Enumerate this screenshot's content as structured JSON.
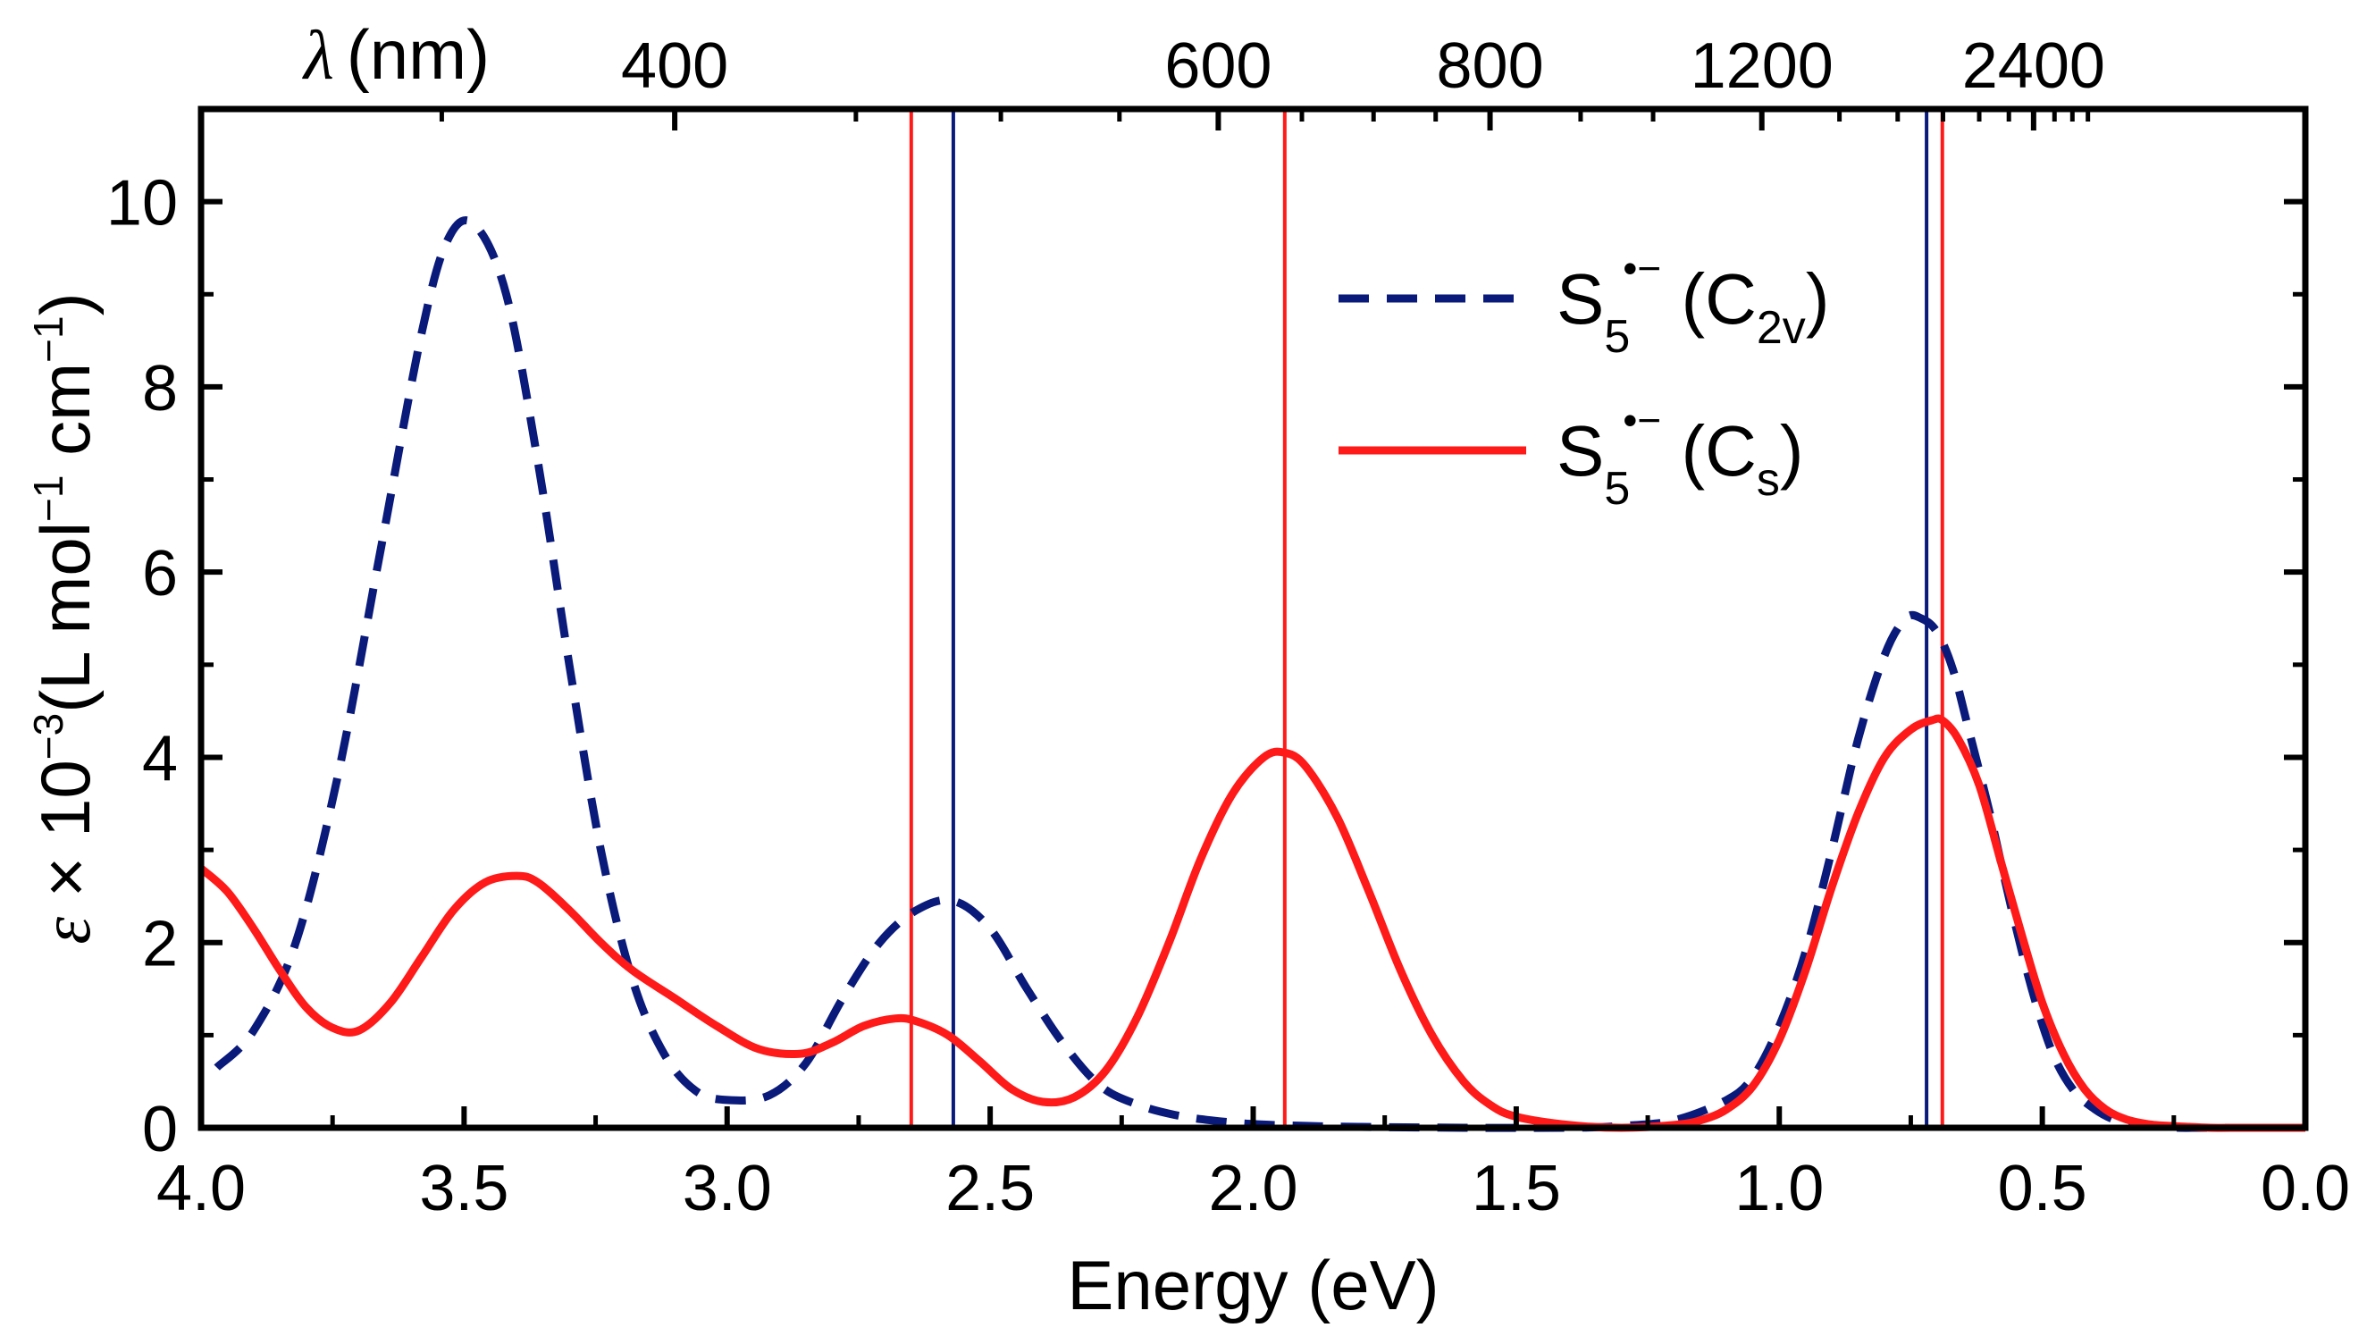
{
  "chart_data": {
    "type": "line",
    "xlabel": "Energy (eV)",
    "x_range": [
      4.0,
      0.0
    ],
    "x_ticks": [
      "4.0",
      "3.5",
      "3.0",
      "2.5",
      "2.0",
      "1.5",
      "1.0",
      "0.5",
      "0.0"
    ],
    "ylabel": "ε × 10⁻³ (L mol⁻¹ cm⁻¹)",
    "ylabel_parts": {
      "symbol": "ε",
      "times": " × 10",
      "exp": "−3",
      "unit_a": "(L mol",
      "exp_a": "−1",
      "unit_b": " cm",
      "exp_b": "−1",
      "close": ")"
    },
    "y_range": [
      0,
      11
    ],
    "y_ticks": [
      "0",
      "2",
      "4",
      "6",
      "8",
      "10"
    ],
    "top_axis": {
      "label_symbol": "λ",
      "label_unit": "(nm)",
      "ticks_nm": [
        400,
        600,
        800,
        1200,
        2400
      ],
      "tick_labels": [
        "400",
        "600",
        "800",
        "1200",
        "2400"
      ],
      "minor_ticks_nm": [
        300,
        350,
        450,
        500,
        550,
        650,
        700,
        750,
        900,
        1000,
        1400,
        1600,
        1800,
        2000,
        2200,
        2600,
        2800,
        3000
      ]
    },
    "series": [
      {
        "name": "S5•− (C2v)",
        "style": "dashed",
        "color": "#0a1a7a",
        "x": [
          3.97,
          3.9,
          3.82,
          3.74,
          3.66,
          3.58,
          3.53,
          3.48,
          3.42,
          3.36,
          3.3,
          3.24,
          3.18,
          3.12,
          3.06,
          3.0,
          2.92,
          2.85,
          2.78,
          2.71,
          2.64,
          2.57,
          2.5,
          2.43,
          2.36,
          2.29,
          2.22,
          2.15,
          2.08,
          2.0,
          1.9,
          1.8,
          1.6,
          1.4,
          1.3,
          1.2,
          1.1,
          1.05,
          1.0,
          0.95,
          0.9,
          0.85,
          0.8,
          0.76,
          0.73,
          0.7,
          0.67,
          0.64,
          0.6,
          0.56,
          0.52,
          0.48,
          0.44,
          0.4,
          0.36,
          0.32,
          0.28,
          0.24,
          0.2,
          0.15,
          0.1,
          0.05,
          0.0
        ],
        "y": [
          0.65,
          1.05,
          2.0,
          3.8,
          6.2,
          8.6,
          9.6,
          9.75,
          9.0,
          7.2,
          5.0,
          3.0,
          1.6,
          0.8,
          0.4,
          0.3,
          0.35,
          0.7,
          1.4,
          2.0,
          2.35,
          2.45,
          2.15,
          1.5,
          0.9,
          0.45,
          0.25,
          0.14,
          0.08,
          0.04,
          0.02,
          0.01,
          0.0,
          0.0,
          0.02,
          0.08,
          0.3,
          0.55,
          1.1,
          1.9,
          3.0,
          4.2,
          5.1,
          5.5,
          5.5,
          5.35,
          4.95,
          4.3,
          3.4,
          2.4,
          1.5,
          0.8,
          0.4,
          0.2,
          0.08,
          0.03,
          0.01,
          0.0,
          0.0,
          0.0,
          0.0,
          0.0,
          0.0
        ]
      },
      {
        "name": "S5•− (Cs)",
        "style": "solid",
        "color": "#ff1a1a",
        "x": [
          4.0,
          3.95,
          3.9,
          3.85,
          3.8,
          3.75,
          3.7,
          3.64,
          3.58,
          3.52,
          3.46,
          3.4,
          3.36,
          3.3,
          3.24,
          3.18,
          3.1,
          3.02,
          2.94,
          2.86,
          2.8,
          2.74,
          2.68,
          2.64,
          2.58,
          2.52,
          2.46,
          2.4,
          2.34,
          2.28,
          2.22,
          2.16,
          2.1,
          2.04,
          1.98,
          1.94,
          1.9,
          1.84,
          1.78,
          1.72,
          1.66,
          1.6,
          1.55,
          1.5,
          1.4,
          1.3,
          1.2,
          1.15,
          1.1,
          1.05,
          1.0,
          0.95,
          0.9,
          0.85,
          0.8,
          0.75,
          0.71,
          0.69,
          0.66,
          0.62,
          0.58,
          0.54,
          0.5,
          0.46,
          0.42,
          0.38,
          0.34,
          0.3,
          0.26,
          0.22,
          0.18,
          0.12,
          0.06,
          0.0
        ],
        "y": [
          2.8,
          2.55,
          2.15,
          1.7,
          1.3,
          1.08,
          1.05,
          1.35,
          1.85,
          2.35,
          2.65,
          2.72,
          2.65,
          2.35,
          2.0,
          1.7,
          1.4,
          1.1,
          0.85,
          0.8,
          0.92,
          1.1,
          1.18,
          1.15,
          1.0,
          0.72,
          0.42,
          0.28,
          0.33,
          0.62,
          1.2,
          2.0,
          2.9,
          3.6,
          4.0,
          4.05,
          3.9,
          3.35,
          2.55,
          1.7,
          1.0,
          0.5,
          0.25,
          0.12,
          0.03,
          0.0,
          0.03,
          0.08,
          0.2,
          0.45,
          0.95,
          1.7,
          2.6,
          3.4,
          4.0,
          4.3,
          4.4,
          4.4,
          4.2,
          3.7,
          2.9,
          2.1,
          1.35,
          0.8,
          0.42,
          0.2,
          0.09,
          0.04,
          0.02,
          0.01,
          0.0,
          0.0,
          0.0,
          0.0
        ]
      }
    ],
    "vertical_lines": [
      {
        "x": 2.65,
        "color": "#ff1a1a",
        "series": "S5•− (Cs)"
      },
      {
        "x": 2.57,
        "color": "#0a1a7a",
        "series": "S5•− (C2v)"
      },
      {
        "x": 1.94,
        "color": "#ff1a1a",
        "series": "S5•− (Cs)"
      },
      {
        "x": 0.72,
        "color": "#0a1a7a",
        "series": "S5•− (C2v)"
      },
      {
        "x": 0.69,
        "color": "#ff1a1a",
        "series": "S5•− (Cs)"
      }
    ],
    "legend": {
      "position": "top-right",
      "entries": [
        {
          "base": "S",
          "sub": "5",
          "sup": "•−",
          "open": " (C",
          "group_sub": "2v",
          "close": ")",
          "style": "dashed",
          "color": "#0a1a7a"
        },
        {
          "base": "S",
          "sub": "5",
          "sup": "•−",
          "open": " (C",
          "group_sub": "s",
          "close": ")",
          "style": "solid",
          "color": "#ff1a1a"
        }
      ]
    },
    "grid": false
  }
}
